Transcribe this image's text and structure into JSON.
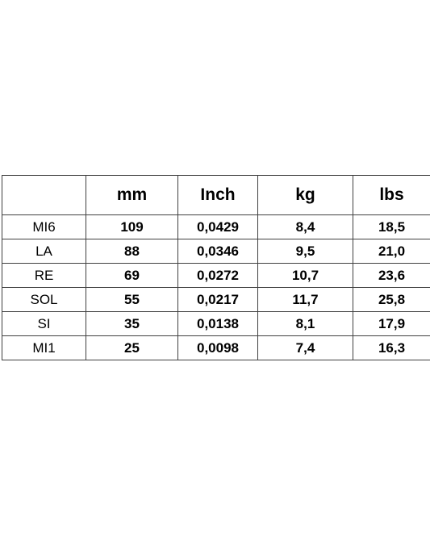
{
  "table": {
    "header": [
      "mm",
      "Inch",
      "kg",
      "lbs"
    ],
    "rows": [
      [
        "MI6",
        "109",
        "0,0429",
        "8,4",
        "18,5"
      ],
      [
        "LA",
        "88",
        "0,0346",
        "9,5",
        "21,0"
      ],
      [
        "RE",
        "69",
        "0,0272",
        "10,7",
        "23,6"
      ],
      [
        "SOL",
        "55",
        "0,0217",
        "11,7",
        "25,8"
      ],
      [
        "SI",
        "35",
        "0,0138",
        "8,1",
        "17,9"
      ],
      [
        "MI1",
        "25",
        "0,0098",
        "7,4",
        "16,3"
      ]
    ]
  }
}
